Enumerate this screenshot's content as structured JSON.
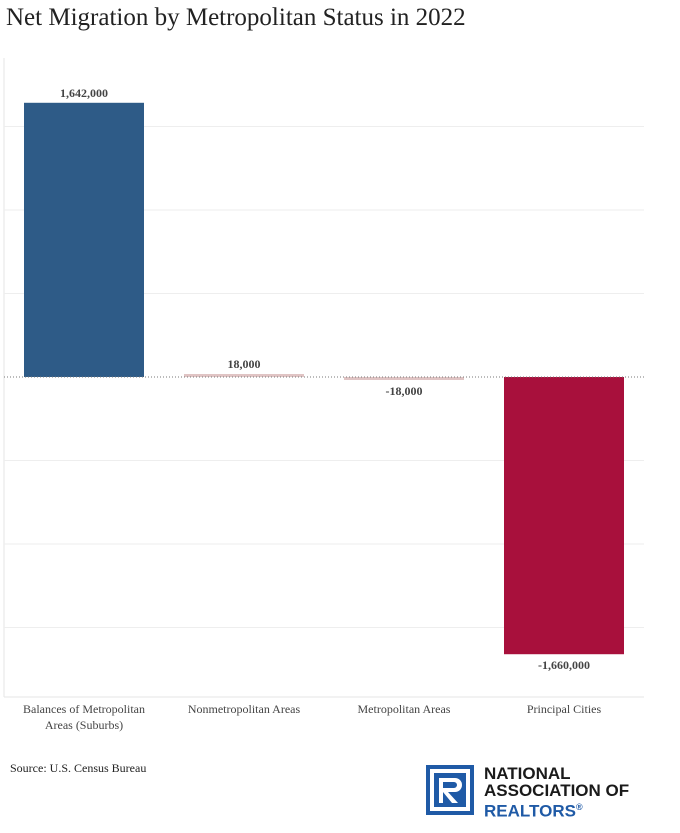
{
  "title": "Net Migration by Metropolitan Status in 2022",
  "source": "Source: U.S. Census Bureau",
  "logo": {
    "line1": "NATIONAL",
    "line2": "ASSOCIATION OF",
    "line3": "REALTORS",
    "mark": "®"
  },
  "colors": {
    "positive": "#2e5b87",
    "negative": "#a8103c",
    "small": "#e0c4c4",
    "grid": "#eeeeee",
    "logo_blue": "#1f5aa6"
  },
  "chart_data": {
    "type": "bar",
    "categories": [
      "Balances of Metropolitan Areas (Suburbs)",
      "Nonmetropolitan Areas",
      "Metropolitan Areas",
      "Principal Cities"
    ],
    "category_lines": [
      [
        "Balances of Metropolitan",
        "Areas (Suburbs)"
      ],
      [
        "Nonmetropolitan Areas"
      ],
      [
        "Metropolitan Areas"
      ],
      [
        "Principal Cities"
      ]
    ],
    "values": [
      1642000,
      18000,
      -18000,
      -1660000
    ],
    "data_labels": [
      "1,642,000",
      "18,000",
      "-18,000",
      "-1,660,000"
    ],
    "ylim": [
      -1900000,
      1900000
    ],
    "grid": true,
    "xlabel": "",
    "ylabel": ""
  }
}
